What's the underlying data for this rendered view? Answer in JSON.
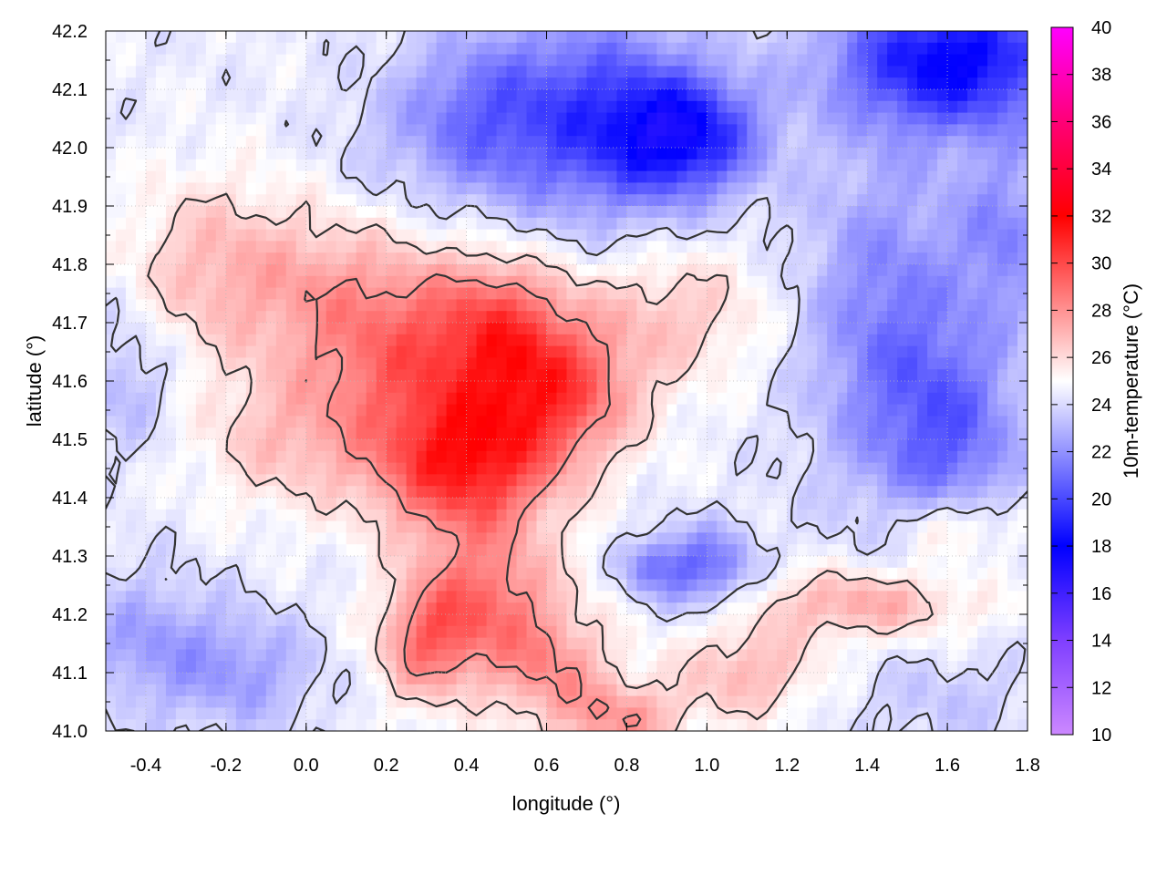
{
  "chart_data": {
    "type": "heatmap",
    "title": "",
    "xlabel": "longitude (°)",
    "ylabel": "latitude (°)",
    "colorbar_label": "10m-temperature (°C)",
    "xlim": [
      -0.5,
      1.8
    ],
    "ylim": [
      41.0,
      42.2
    ],
    "x_ticks": [
      -0.4,
      -0.2,
      0.0,
      0.2,
      0.4,
      0.6,
      0.8,
      1.0,
      1.2,
      1.4,
      1.6,
      1.8
    ],
    "x_tick_labels": [
      "-0.4",
      "-0.2",
      "0.0",
      "0.2",
      "0.4",
      "0.6",
      "0.8",
      "1.0",
      "1.2",
      "1.4",
      "1.6",
      "1.8"
    ],
    "y_ticks": [
      41.0,
      41.1,
      41.2,
      41.3,
      41.4,
      41.5,
      41.6,
      41.7,
      41.8,
      41.9,
      42.0,
      42.1,
      42.2
    ],
    "y_tick_labels": [
      "41.0",
      "41.1",
      "41.2",
      "41.3",
      "41.4",
      "41.5",
      "41.6",
      "41.7",
      "41.8",
      "41.9",
      "42.0",
      "42.1",
      "42.2"
    ],
    "colorbar_range": [
      10,
      40
    ],
    "colorbar_ticks": [
      10,
      12,
      14,
      16,
      18,
      20,
      22,
      24,
      26,
      28,
      30,
      32,
      34,
      36,
      38,
      40
    ],
    "colorbar_tick_labels": [
      "10",
      "12",
      "14",
      "16",
      "18",
      "20",
      "22",
      "24",
      "26",
      "28",
      "30",
      "32",
      "34",
      "36",
      "38",
      "40"
    ],
    "colormap": [
      {
        "value": 10,
        "color": "#cc88ff"
      },
      {
        "value": 14,
        "color": "#7f3fff"
      },
      {
        "value": 18,
        "color": "#0000ff"
      },
      {
        "value": 25,
        "color": "#ffffff"
      },
      {
        "value": 32,
        "color": "#ff0000"
      },
      {
        "value": 36,
        "color": "#ff0077"
      },
      {
        "value": 40,
        "color": "#ff00ff"
      }
    ],
    "contour_color": "#333333",
    "grid": true,
    "temperature_field": {
      "background": 24.5,
      "features": [
        {
          "lon": 0.4,
          "lat": 41.45,
          "temp": 30.5,
          "rx": 0.22,
          "ry": 0.12
        },
        {
          "lon": 0.62,
          "lat": 41.58,
          "temp": 29.5,
          "rx": 0.2,
          "ry": 0.12
        },
        {
          "lon": 0.48,
          "lat": 41.7,
          "temp": 28.5,
          "rx": 0.18,
          "ry": 0.12
        },
        {
          "lon": 0.25,
          "lat": 41.62,
          "temp": 28.0,
          "rx": 0.22,
          "ry": 0.16
        },
        {
          "lon": 0.05,
          "lat": 41.75,
          "temp": 27.0,
          "rx": 0.25,
          "ry": 0.15
        },
        {
          "lon": -0.25,
          "lat": 41.8,
          "temp": 26.5,
          "rx": 0.2,
          "ry": 0.15
        },
        {
          "lon": -0.05,
          "lat": 41.5,
          "temp": 26.5,
          "rx": 0.22,
          "ry": 0.12
        },
        {
          "lon": 0.45,
          "lat": 41.22,
          "temp": 28.5,
          "rx": 0.18,
          "ry": 0.12
        },
        {
          "lon": 0.62,
          "lat": 41.1,
          "temp": 27.5,
          "rx": 0.15,
          "ry": 0.1
        },
        {
          "lon": 0.3,
          "lat": 41.15,
          "temp": 28.0,
          "rx": 0.12,
          "ry": 0.1
        },
        {
          "lon": 0.92,
          "lat": 41.72,
          "temp": 26.5,
          "rx": 0.25,
          "ry": 0.12
        },
        {
          "lon": 1.4,
          "lat": 41.22,
          "temp": 27.5,
          "rx": 0.28,
          "ry": 0.06
        },
        {
          "lon": 1.62,
          "lat": 41.35,
          "temp": 27.0,
          "rx": 0.15,
          "ry": 0.06
        },
        {
          "lon": 1.1,
          "lat": 41.1,
          "temp": 27.0,
          "rx": 0.18,
          "ry": 0.08
        },
        {
          "lon": 0.8,
          "lat": 41.02,
          "temp": 27.5,
          "rx": 0.14,
          "ry": 0.06
        },
        {
          "lon": 0.72,
          "lat": 42.05,
          "temp": 20.0,
          "rx": 0.28,
          "ry": 0.18
        },
        {
          "lon": 0.95,
          "lat": 42.02,
          "temp": 19.5,
          "rx": 0.18,
          "ry": 0.1
        },
        {
          "lon": 0.4,
          "lat": 42.05,
          "temp": 22.0,
          "rx": 0.2,
          "ry": 0.14
        },
        {
          "lon": 1.62,
          "lat": 42.15,
          "temp": 18.0,
          "rx": 0.3,
          "ry": 0.12
        },
        {
          "lon": 1.45,
          "lat": 41.7,
          "temp": 21.5,
          "rx": 0.22,
          "ry": 0.3
        },
        {
          "lon": 1.62,
          "lat": 41.5,
          "temp": 21.5,
          "rx": 0.18,
          "ry": 0.18
        },
        {
          "lon": 1.0,
          "lat": 41.28,
          "temp": 21.0,
          "rx": 0.12,
          "ry": 0.07
        },
        {
          "lon": 0.86,
          "lat": 41.28,
          "temp": 22.0,
          "rx": 0.08,
          "ry": 0.05
        },
        {
          "lon": -0.4,
          "lat": 41.15,
          "temp": 22.5,
          "rx": 0.18,
          "ry": 0.12
        },
        {
          "lon": -0.15,
          "lat": 41.1,
          "temp": 22.5,
          "rx": 0.18,
          "ry": 0.1
        },
        {
          "lon": -0.45,
          "lat": 41.6,
          "temp": 23.0,
          "rx": 0.12,
          "ry": 0.12
        },
        {
          "lon": 1.6,
          "lat": 41.05,
          "temp": 23.5,
          "rx": 0.25,
          "ry": 0.08
        },
        {
          "lon": 1.75,
          "lat": 41.85,
          "temp": 22.0,
          "rx": 0.12,
          "ry": 0.15
        },
        {
          "lon": 0.15,
          "lat": 41.97,
          "temp": 24.0,
          "rx": 0.15,
          "ry": 0.12
        }
      ],
      "contour_levels": [
        24,
        26,
        28
      ]
    }
  }
}
